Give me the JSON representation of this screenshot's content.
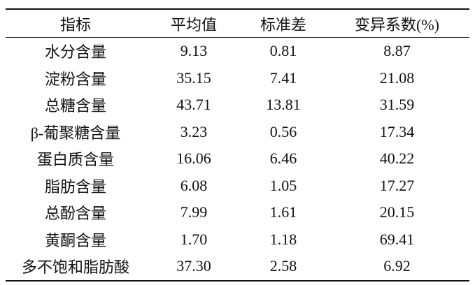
{
  "table": {
    "header": [
      "指标",
      "平均值",
      "标准差",
      "变异系数(%)"
    ],
    "rows": [
      [
        "水分含量",
        "9.13",
        "0.81",
        "8.87"
      ],
      [
        "淀粉含量",
        "35.15",
        "7.41",
        "21.08"
      ],
      [
        "总糖含量",
        "43.71",
        "13.81",
        "31.59"
      ],
      [
        "β-葡聚糖含量",
        "3.23",
        "0.56",
        "17.34"
      ],
      [
        "蛋白质含量",
        "16.06",
        "6.46",
        "40.22"
      ],
      [
        "脂肪含量",
        "6.08",
        "1.05",
        "17.27"
      ],
      [
        "总酚含量",
        "7.99",
        "1.61",
        "20.15"
      ],
      [
        "黄酮含量",
        "1.70",
        "1.18",
        "69.41"
      ],
      [
        "多不饱和脂肪酸",
        "37.30",
        "2.58",
        "6.92"
      ]
    ]
  }
}
